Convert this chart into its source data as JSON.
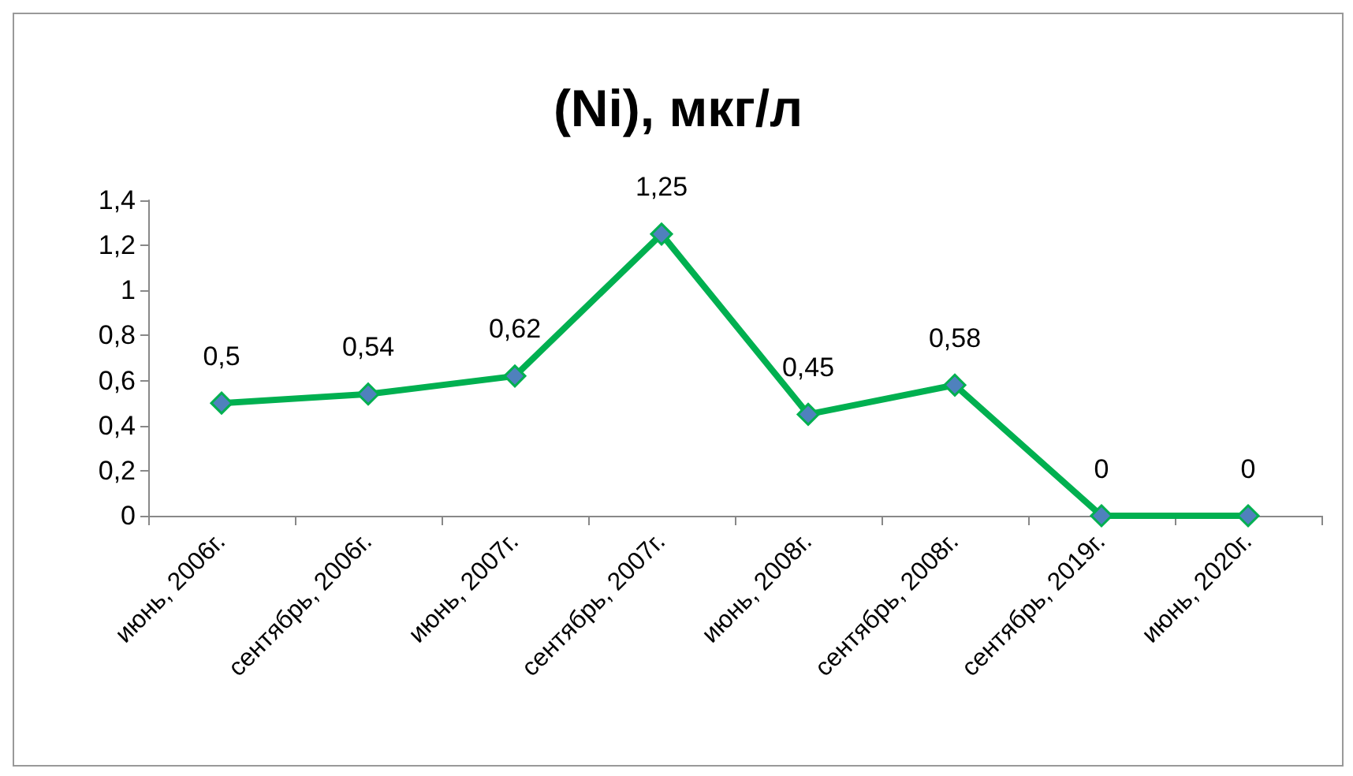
{
  "chart_data": {
    "type": "line",
    "title": "(Ni), мкг/л",
    "categories": [
      "июнь, 2006г.",
      "сентябрь, 2006г.",
      "июнь, 2007г.",
      "сентябрь, 2007г.",
      "июнь, 2008г.",
      "сентябрь, 2008г.",
      "сентябрь, 2019г.",
      "июнь, 2020г."
    ],
    "series": [
      {
        "color": "#00b050",
        "colors": [
          "#4f81bd",
          "#4f81bd",
          "#4f81bd",
          "#4f81bd",
          "#4f81bd",
          "#4f81bd",
          "#4f81bd",
          "#4f81bd"
        ],
        "values": [
          0.5,
          0.54,
          0.62,
          1.25,
          0.45,
          0.58,
          0,
          0
        ],
        "value_labels": [
          "0,5",
          "0,54",
          "0,62",
          "1,25",
          "0,45",
          "0,58",
          "0",
          "0"
        ]
      }
    ],
    "ylim": [
      0,
      1.4
    ],
    "yticks": [
      0,
      {
        "value": 0.2,
        "label": "0,2"
      },
      {
        "value": 0.4,
        "label": "0,4"
      },
      {
        "value": 0.6,
        "label": "0,6"
      },
      {
        "value": 0.8,
        "label": "0,8"
      },
      1,
      {
        "value": 1.2,
        "label": "1,2"
      },
      {
        "value": 1.4,
        "label": "1,4"
      }
    ],
    "grid": false,
    "marker": "diamond",
    "line_style": "solid"
  }
}
